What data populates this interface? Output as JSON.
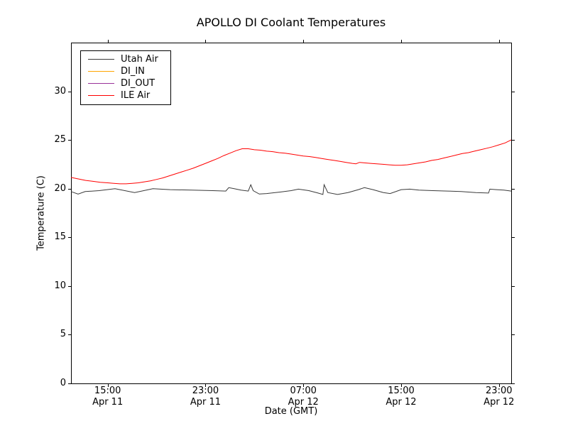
{
  "chart_data": {
    "type": "line",
    "title": "APOLLO DI Coolant Temperatures",
    "xlabel": "Date (GMT)",
    "ylabel": "Temperature (C)",
    "x_unit": "hours since Apr 11 12:00 GMT",
    "xlim": [
      0,
      36
    ],
    "ylim": [
      0,
      35
    ],
    "grid": false,
    "legend_position": "upper left",
    "yticks": [
      0,
      5,
      10,
      15,
      20,
      25,
      30
    ],
    "xticks": [
      {
        "t": 3,
        "time": "15:00",
        "date": "Apr 11"
      },
      {
        "t": 11,
        "time": "23:00",
        "date": "Apr 11"
      },
      {
        "t": 19,
        "time": "07:00",
        "date": "Apr 12"
      },
      {
        "t": 27,
        "time": "15:00",
        "date": "Apr 12"
      },
      {
        "t": 35,
        "time": "23:00",
        "date": "Apr 12"
      }
    ],
    "series": [
      {
        "name": "Utah Air",
        "color": "#3a3a3a",
        "points": [
          [
            0,
            19.7
          ],
          [
            0.58,
            19.45
          ],
          [
            1.16,
            19.7
          ],
          [
            2.3,
            19.8
          ],
          [
            3.6,
            20.0
          ],
          [
            5.2,
            19.6
          ],
          [
            6.7,
            20.0
          ],
          [
            8.1,
            19.9
          ],
          [
            9.9,
            19.85
          ],
          [
            11.6,
            19.8
          ],
          [
            12.66,
            19.75
          ],
          [
            12.9,
            20.1
          ],
          [
            13.35,
            20.0
          ],
          [
            13.9,
            19.85
          ],
          [
            14.5,
            19.75
          ],
          [
            14.7,
            20.4
          ],
          [
            14.9,
            19.8
          ],
          [
            15.4,
            19.45
          ],
          [
            16.0,
            19.5
          ],
          [
            17.1,
            19.65
          ],
          [
            18.0,
            19.8
          ],
          [
            18.6,
            19.95
          ],
          [
            19.45,
            19.8
          ],
          [
            20.2,
            19.55
          ],
          [
            20.6,
            19.4
          ],
          [
            20.7,
            20.4
          ],
          [
            21.0,
            19.6
          ],
          [
            21.8,
            19.4
          ],
          [
            22.65,
            19.6
          ],
          [
            23.5,
            19.9
          ],
          [
            24.0,
            20.1
          ],
          [
            24.7,
            19.9
          ],
          [
            25.55,
            19.6
          ],
          [
            26.1,
            19.5
          ],
          [
            27.0,
            19.9
          ],
          [
            27.7,
            19.95
          ],
          [
            28.45,
            19.85
          ],
          [
            29.6,
            19.8
          ],
          [
            30.8,
            19.75
          ],
          [
            31.9,
            19.7
          ],
          [
            33.1,
            19.6
          ],
          [
            34.15,
            19.55
          ],
          [
            34.25,
            19.95
          ],
          [
            34.8,
            19.9
          ],
          [
            35.4,
            19.85
          ],
          [
            36,
            19.75
          ]
        ]
      },
      {
        "name": "DI_IN",
        "color": "#ffa500",
        "points": []
      },
      {
        "name": "DI_OUT",
        "color": "#993399",
        "points": []
      },
      {
        "name": "ILE Air",
        "color": "#ff0000",
        "points": [
          [
            0,
            21.15
          ],
          [
            0.6,
            21.0
          ],
          [
            1.2,
            20.85
          ],
          [
            1.8,
            20.75
          ],
          [
            2.4,
            20.65
          ],
          [
            3,
            20.6
          ],
          [
            3.5,
            20.55
          ],
          [
            4,
            20.5
          ],
          [
            4.5,
            20.5
          ],
          [
            5,
            20.55
          ],
          [
            5.5,
            20.6
          ],
          [
            6,
            20.7
          ],
          [
            6.5,
            20.8
          ],
          [
            7,
            20.95
          ],
          [
            7.5,
            21.1
          ],
          [
            8,
            21.3
          ],
          [
            8.5,
            21.5
          ],
          [
            9,
            21.7
          ],
          [
            9.5,
            21.9
          ],
          [
            10,
            22.1
          ],
          [
            10.5,
            22.35
          ],
          [
            11,
            22.6
          ],
          [
            11.5,
            22.85
          ],
          [
            12,
            23.1
          ],
          [
            12.5,
            23.4
          ],
          [
            13,
            23.65
          ],
          [
            13.5,
            23.9
          ],
          [
            14,
            24.1
          ],
          [
            14.5,
            24.1
          ],
          [
            15,
            24.0
          ],
          [
            15.5,
            23.95
          ],
          [
            16,
            23.85
          ],
          [
            16.5,
            23.8
          ],
          [
            17,
            23.7
          ],
          [
            17.5,
            23.65
          ],
          [
            18,
            23.55
          ],
          [
            18.5,
            23.45
          ],
          [
            19,
            23.35
          ],
          [
            19.5,
            23.3
          ],
          [
            20,
            23.2
          ],
          [
            20.5,
            23.1
          ],
          [
            21,
            23.0
          ],
          [
            21.5,
            22.9
          ],
          [
            22,
            22.8
          ],
          [
            22.5,
            22.7
          ],
          [
            23,
            22.6
          ],
          [
            23.3,
            22.55
          ],
          [
            23.6,
            22.7
          ],
          [
            24,
            22.65
          ],
          [
            24.5,
            22.6
          ],
          [
            25,
            22.55
          ],
          [
            25.5,
            22.5
          ],
          [
            26,
            22.45
          ],
          [
            26.5,
            22.4
          ],
          [
            27,
            22.4
          ],
          [
            27.5,
            22.45
          ],
          [
            28,
            22.55
          ],
          [
            28.5,
            22.65
          ],
          [
            29,
            22.75
          ],
          [
            29.5,
            22.9
          ],
          [
            30,
            23.0
          ],
          [
            30.5,
            23.15
          ],
          [
            31,
            23.3
          ],
          [
            31.5,
            23.45
          ],
          [
            32,
            23.6
          ],
          [
            32.5,
            23.7
          ],
          [
            33,
            23.85
          ],
          [
            33.5,
            24.0
          ],
          [
            34,
            24.15
          ],
          [
            34.5,
            24.3
          ],
          [
            35,
            24.5
          ],
          [
            35.5,
            24.7
          ],
          [
            36,
            25.0
          ]
        ]
      }
    ]
  }
}
